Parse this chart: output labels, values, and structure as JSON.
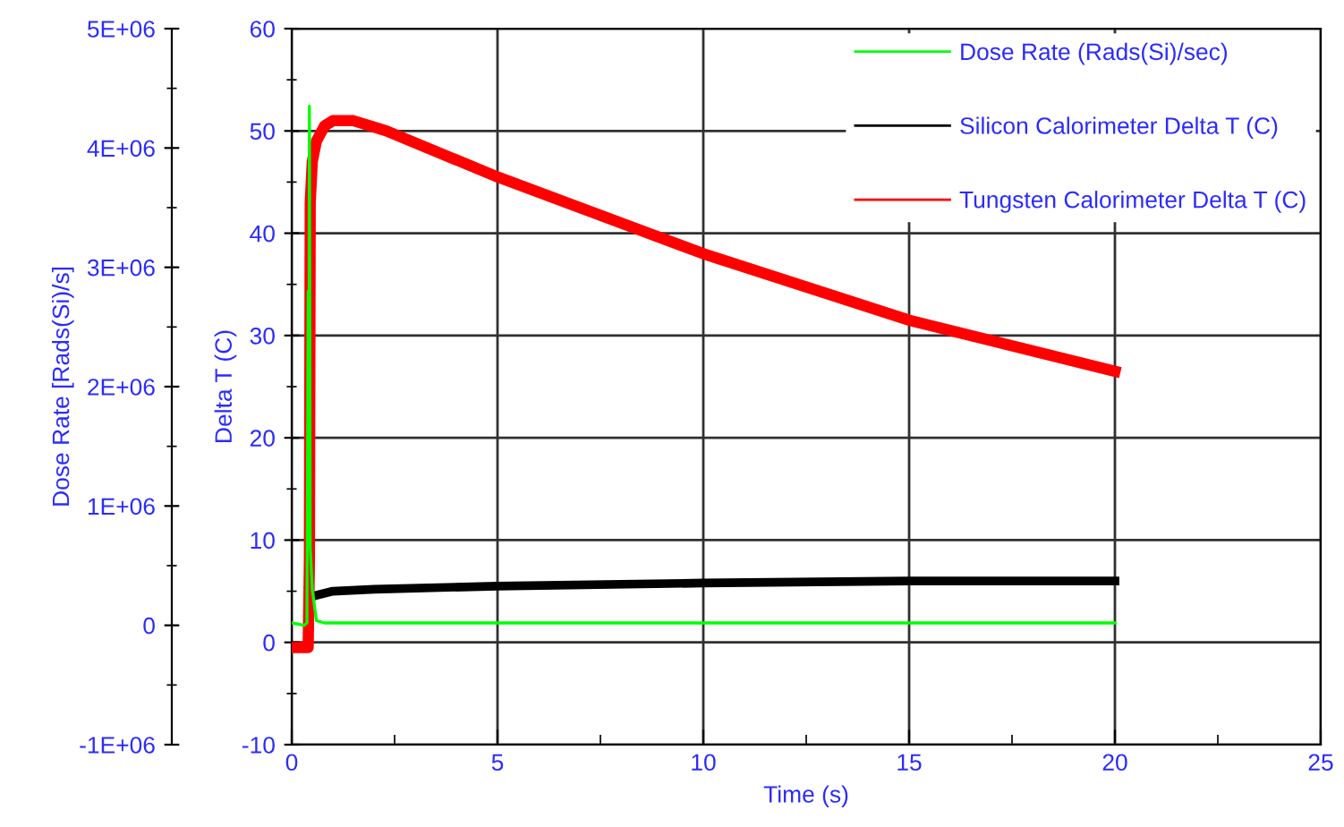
{
  "chart_data": {
    "type": "line",
    "xlabel": "Time (s)",
    "ylabel": "Delta T (C)",
    "y2label": "Dose Rate [Rads(Si)/s]",
    "xlim": [
      0,
      25
    ],
    "xticks": [
      0,
      5,
      10,
      15,
      20,
      25
    ],
    "ylim": [
      -10,
      60
    ],
    "yticks": [
      -10,
      0,
      10,
      20,
      30,
      40,
      50,
      60
    ],
    "y2lim": [
      -1000000,
      5000000
    ],
    "y2ticks": [
      {
        "value": -1000000,
        "label": "-1E+06"
      },
      0,
      {
        "value": 1000000,
        "label": "1E+06"
      },
      {
        "value": 2000000,
        "label": "2E+06"
      },
      {
        "value": 3000000,
        "label": "3E+06"
      },
      {
        "value": 4000000,
        "label": "4E+06"
      },
      {
        "value": 5000000,
        "label": "5E+06"
      }
    ],
    "grid": true,
    "legend": "top right",
    "marker": "none",
    "line_style": "solid",
    "series": [
      {
        "name": "Dose Rate (Rads(Si)/sec)",
        "color": "#00ff00",
        "axis": "y2",
        "x": [
          0,
          0.3,
          0.37,
          0.4,
          0.42,
          0.43,
          0.45,
          0.5,
          0.6,
          0.8,
          2,
          5,
          10,
          15,
          20
        ],
        "values": [
          20000,
          0,
          20000,
          2800000,
          1500000,
          4350000,
          650000,
          300000,
          40000,
          20000,
          20000,
          20000,
          20000,
          20000,
          20000
        ]
      },
      {
        "name": "Silicon Calorimeter Delta T (C)",
        "color": "#000000",
        "x": [
          0,
          0.4,
          0.45,
          0.5,
          1,
          2,
          5,
          10,
          15,
          20
        ],
        "values": [
          -0.5,
          -0.5,
          4,
          4.5,
          5,
          5.2,
          5.5,
          5.8,
          6,
          6
        ]
      },
      {
        "name": "Tungsten Calorimeter Delta T (C)",
        "color": "#ff0000",
        "x": [
          0,
          0.4,
          0.43,
          0.45,
          0.5,
          0.6,
          0.8,
          1,
          1.5,
          2.3,
          5,
          10,
          15,
          20
        ],
        "values": [
          -0.5,
          -0.5,
          8,
          43,
          47,
          49,
          50.5,
          51,
          51,
          50,
          45.5,
          38,
          31.5,
          26.5
        ]
      }
    ]
  }
}
